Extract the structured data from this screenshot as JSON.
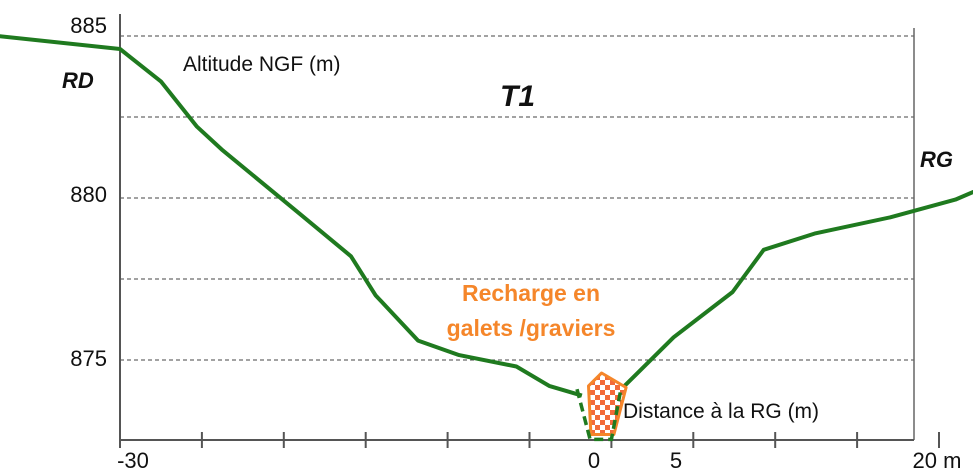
{
  "chart_data": {
    "type": "line",
    "title": "T1",
    "ylabel": "Altitude NGF (m)",
    "xlabel": "Distance à la RG (m)",
    "left_bank_label": "RD",
    "right_bank_label": "RG",
    "y_ticks": [
      {
        "value": 885,
        "label": "885"
      },
      {
        "value": 880,
        "label": "880"
      },
      {
        "value": 875,
        "label": "875"
      }
    ],
    "x_ticks": [
      {
        "value": -30,
        "label": "-30"
      },
      {
        "value": 0,
        "label": "0"
      },
      {
        "value": 5,
        "label": "5"
      },
      {
        "value": 20,
        "label": "20 m"
      }
    ],
    "xlim": [
      -30,
      20
    ],
    "ylim": [
      872.5,
      885.5
    ],
    "grid": "horizontal dashed",
    "series": [
      {
        "color": "#1f7a1f",
        "points": [
          [
            -37.5,
            885.0
          ],
          [
            -30.0,
            884.6
          ],
          [
            -27.5,
            883.6
          ],
          [
            -25.3,
            882.2
          ],
          [
            -23.8,
            881.5
          ],
          [
            -19.0,
            879.5
          ],
          [
            -15.9,
            878.2
          ],
          [
            -14.4,
            877.0
          ],
          [
            -11.8,
            875.6
          ],
          [
            -9.3,
            875.15
          ],
          [
            -5.8,
            874.8
          ],
          [
            -3.8,
            874.2
          ],
          [
            -1.8,
            873.9
          ]
        ]
      },
      {
        "color": "#1f7a1f",
        "points": [
          [
            0.6,
            874.1
          ],
          [
            3.8,
            875.7
          ],
          [
            7.4,
            877.1
          ],
          [
            9.3,
            878.4
          ],
          [
            12.4,
            878.9
          ],
          [
            17.0,
            879.4
          ],
          [
            21.0,
            879.95
          ],
          [
            24.0,
            880.6
          ]
        ]
      }
    ],
    "channel": {
      "color": "#1f7a1f",
      "points": [
        [
          -2.1,
          874.1
        ],
        [
          -1.3,
          872.55
        ],
        [
          0.0,
          872.55
        ],
        [
          0.6,
          874.15
        ]
      ]
    },
    "annotations": [
      {
        "text_lines": [
          "Recharge en",
          "galets /graviers"
        ],
        "color": "#f5862a",
        "marker": {
          "fill": "checkered orange/white",
          "polygon": [
            [
              -1.4,
              874.2
            ],
            [
              -0.6,
              874.6
            ],
            [
              0.9,
              874.15
            ],
            [
              0.15,
              872.7
            ],
            [
              -1.25,
              872.7
            ]
          ]
        }
      }
    ]
  }
}
